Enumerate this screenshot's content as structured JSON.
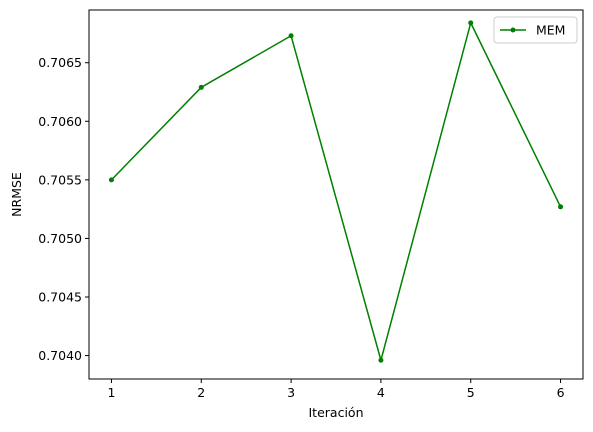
{
  "chart_data": {
    "type": "line",
    "xlabel": "Iteración",
    "ylabel": "NRMSE",
    "x": [
      1,
      2,
      3,
      4,
      5,
      6
    ],
    "xlim": [
      0.75,
      6.25
    ],
    "ylim": [
      0.7038,
      0.70695
    ],
    "xticks": [
      "1",
      "2",
      "3",
      "4",
      "5",
      "6"
    ],
    "yticks": [
      "0.7040",
      "0.7045",
      "0.7050",
      "0.7055",
      "0.7060",
      "0.7065"
    ],
    "grid": false,
    "legend_position": "upper-right",
    "series": [
      {
        "name": "MEM",
        "color": "#008000",
        "marker": "circle",
        "values": [
          0.7055,
          0.70629,
          0.70673,
          0.70396,
          0.70684,
          0.70527
        ]
      }
    ]
  }
}
